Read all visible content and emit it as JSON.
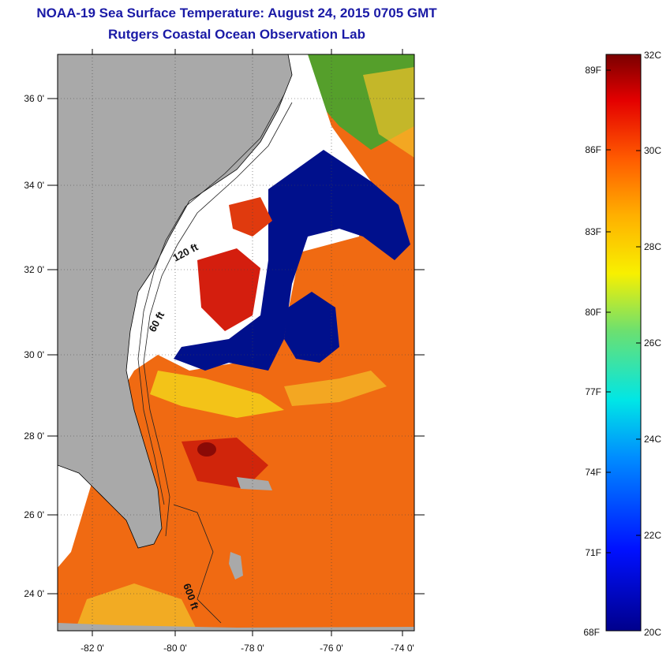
{
  "title_line1": "NOAA-19 Sea Surface Temperature:  August 24, 2015 0705 GMT",
  "title_line2": "Rutgers Coastal Ocean Observation Lab",
  "map": {
    "lon_ticks": [
      "-82 0'",
      "-80 0'",
      "-78 0'",
      "-76 0'",
      "-74 0'"
    ],
    "lat_ticks": [
      "36 0'",
      "34 0'",
      "32 0'",
      "30 0'",
      "28 0'",
      "26 0'",
      "24 0'"
    ],
    "contour_labels": [
      "120 ft",
      "60 ft",
      "600 ft"
    ],
    "colors": {
      "land": "#a9a9a9",
      "cloud": "#ffffff",
      "cold": "#00108c",
      "warm": "#f06a12",
      "hot": "#d41e0e"
    }
  },
  "colorbar": {
    "fahrenheit": [
      "89F",
      "86F",
      "83F",
      "80F",
      "77F",
      "74F",
      "71F",
      "68F"
    ],
    "celsius": [
      "32C",
      "30C",
      "28C",
      "26C",
      "24C",
      "22C",
      "20C"
    ],
    "min_c": 20,
    "max_c": 32
  }
}
